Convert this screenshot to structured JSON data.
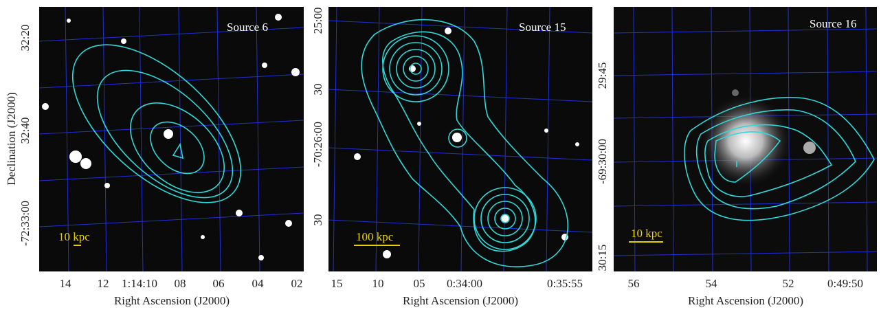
{
  "y_axis_label": "Declination (J2000)",
  "panels": [
    {
      "title": "Source 6",
      "scale_bar": "10 kpc",
      "x_axis_label": "Right Ascension (J2000)",
      "x_ticks": [
        "14",
        "12",
        "1:14:10",
        "08",
        "06",
        "04",
        "02"
      ],
      "y_ticks": [
        "32:20",
        "32:40",
        "-72:33:00"
      ]
    },
    {
      "title": "Source 15",
      "scale_bar": "100 kpc",
      "x_axis_label": "Right Ascension (J2000)",
      "x_ticks": [
        "15",
        "10",
        "05",
        "0:34:00",
        "0:35:55"
      ],
      "y_ticks": [
        "25:00",
        "30",
        "-70:26:00",
        "30"
      ]
    },
    {
      "title": "Source 16",
      "scale_bar": "10 kpc",
      "x_axis_label": "Right Ascension (J2000)",
      "x_ticks": [
        "56",
        "54",
        "52",
        "0:49:50"
      ],
      "y_ticks": [
        "29:45",
        "-69:30:00",
        "30:15"
      ]
    }
  ]
}
